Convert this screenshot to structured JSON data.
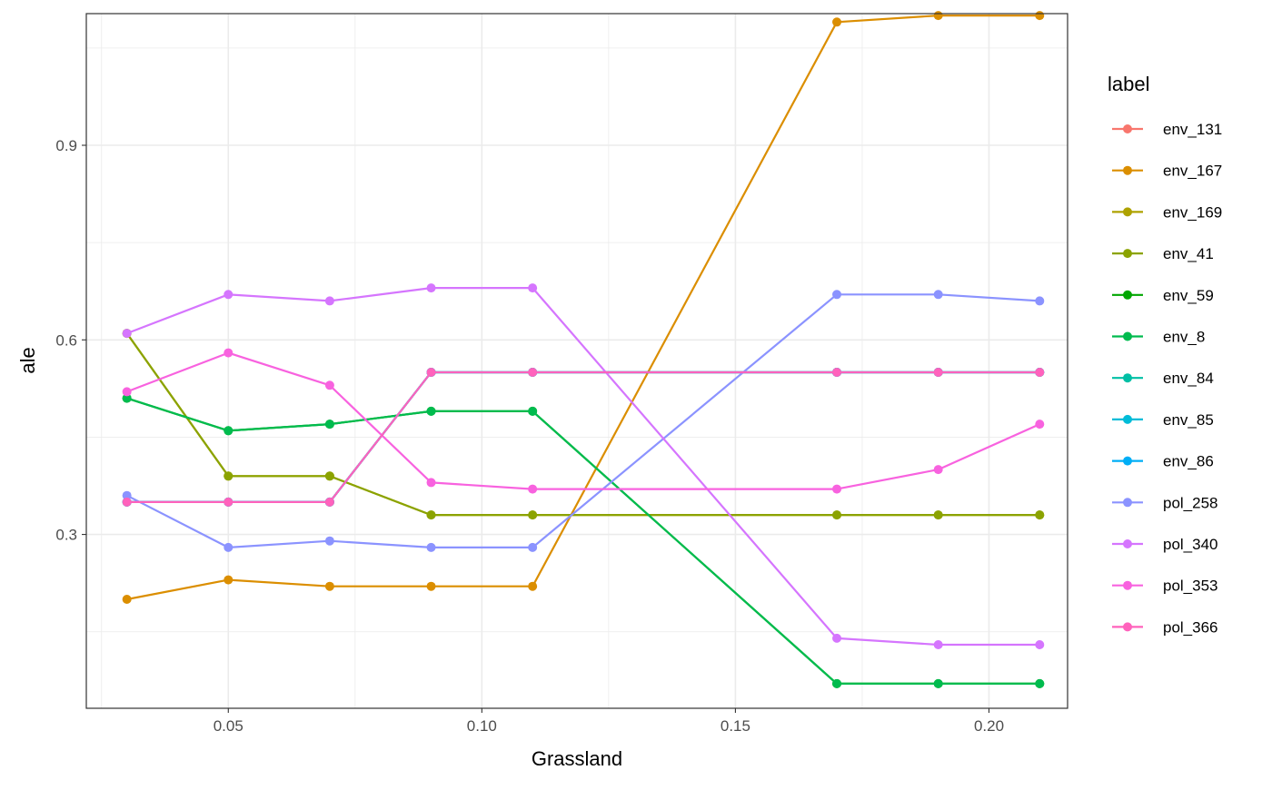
{
  "chart_data": {
    "type": "line",
    "xlabel": "Grassland",
    "ylabel": "ale",
    "xlim": [
      0.022,
      0.2155
    ],
    "ylim": [
      0.032,
      1.103
    ],
    "x_ticks": [
      0.05,
      0.1,
      0.15,
      0.2
    ],
    "x_tick_labels": [
      "0.05",
      "0.10",
      "0.15",
      "0.20"
    ],
    "y_ticks": [
      0.3,
      0.6,
      0.9
    ],
    "y_tick_labels": [
      "0.3",
      "0.6",
      "0.9"
    ],
    "grid": true,
    "legend": {
      "title": "label",
      "position": "right"
    },
    "x": [
      0.03,
      0.05,
      0.07,
      0.09,
      0.11,
      0.17,
      0.19,
      0.21
    ],
    "series": [
      {
        "name": "env_131",
        "color": "#F8766D",
        "values": [
          0.35,
          0.35,
          0.35,
          0.55,
          0.55,
          0.55,
          0.55,
          0.55
        ]
      },
      {
        "name": "env_167",
        "color": "#DB8E00",
        "values": [
          0.2,
          0.23,
          0.22,
          0.22,
          0.22,
          1.09,
          1.1,
          1.1
        ]
      },
      {
        "name": "env_169",
        "color": "#AEA200",
        "values": [
          0.61,
          0.39,
          0.39,
          0.33,
          0.33,
          0.33,
          0.33,
          0.33
        ]
      },
      {
        "name": "env_41",
        "color": "#8BA300",
        "values": [
          0.61,
          0.39,
          0.39,
          0.33,
          0.33,
          0.33,
          0.33,
          0.33
        ]
      },
      {
        "name": "env_59",
        "color": "#00A600",
        "values": [
          0.51,
          0.46,
          0.47,
          0.49,
          0.49,
          0.07,
          0.07,
          0.07
        ]
      },
      {
        "name": "env_8",
        "color": "#00BB4E",
        "values": [
          0.51,
          0.46,
          0.47,
          0.49,
          0.49,
          0.07,
          0.07,
          0.07
        ]
      },
      {
        "name": "env_84",
        "color": "#00BFA5",
        "values": [
          0.35,
          0.35,
          0.35,
          0.55,
          0.55,
          0.55,
          0.55,
          0.55
        ]
      },
      {
        "name": "env_85",
        "color": "#00BCD8",
        "values": [
          0.35,
          0.35,
          0.35,
          0.55,
          0.55,
          0.55,
          0.55,
          0.55
        ]
      },
      {
        "name": "env_86",
        "color": "#00AEF6",
        "values": [
          0.35,
          0.35,
          0.35,
          0.55,
          0.55,
          0.55,
          0.55,
          0.55
        ]
      },
      {
        "name": "pol_258",
        "color": "#8B93FF",
        "values": [
          0.36,
          0.28,
          0.29,
          0.28,
          0.28,
          0.67,
          0.67,
          0.66
        ]
      },
      {
        "name": "pol_340",
        "color": "#D575FE",
        "values": [
          0.61,
          0.67,
          0.66,
          0.68,
          0.68,
          0.14,
          0.13,
          0.13
        ]
      },
      {
        "name": "pol_353",
        "color": "#F862DF",
        "values": [
          0.52,
          0.58,
          0.53,
          0.38,
          0.37,
          0.37,
          0.4,
          0.47
        ]
      },
      {
        "name": "pol_366",
        "color": "#FF62BC",
        "values": [
          0.35,
          0.35,
          0.35,
          0.55,
          0.55,
          0.55,
          0.55,
          0.55
        ]
      }
    ]
  }
}
